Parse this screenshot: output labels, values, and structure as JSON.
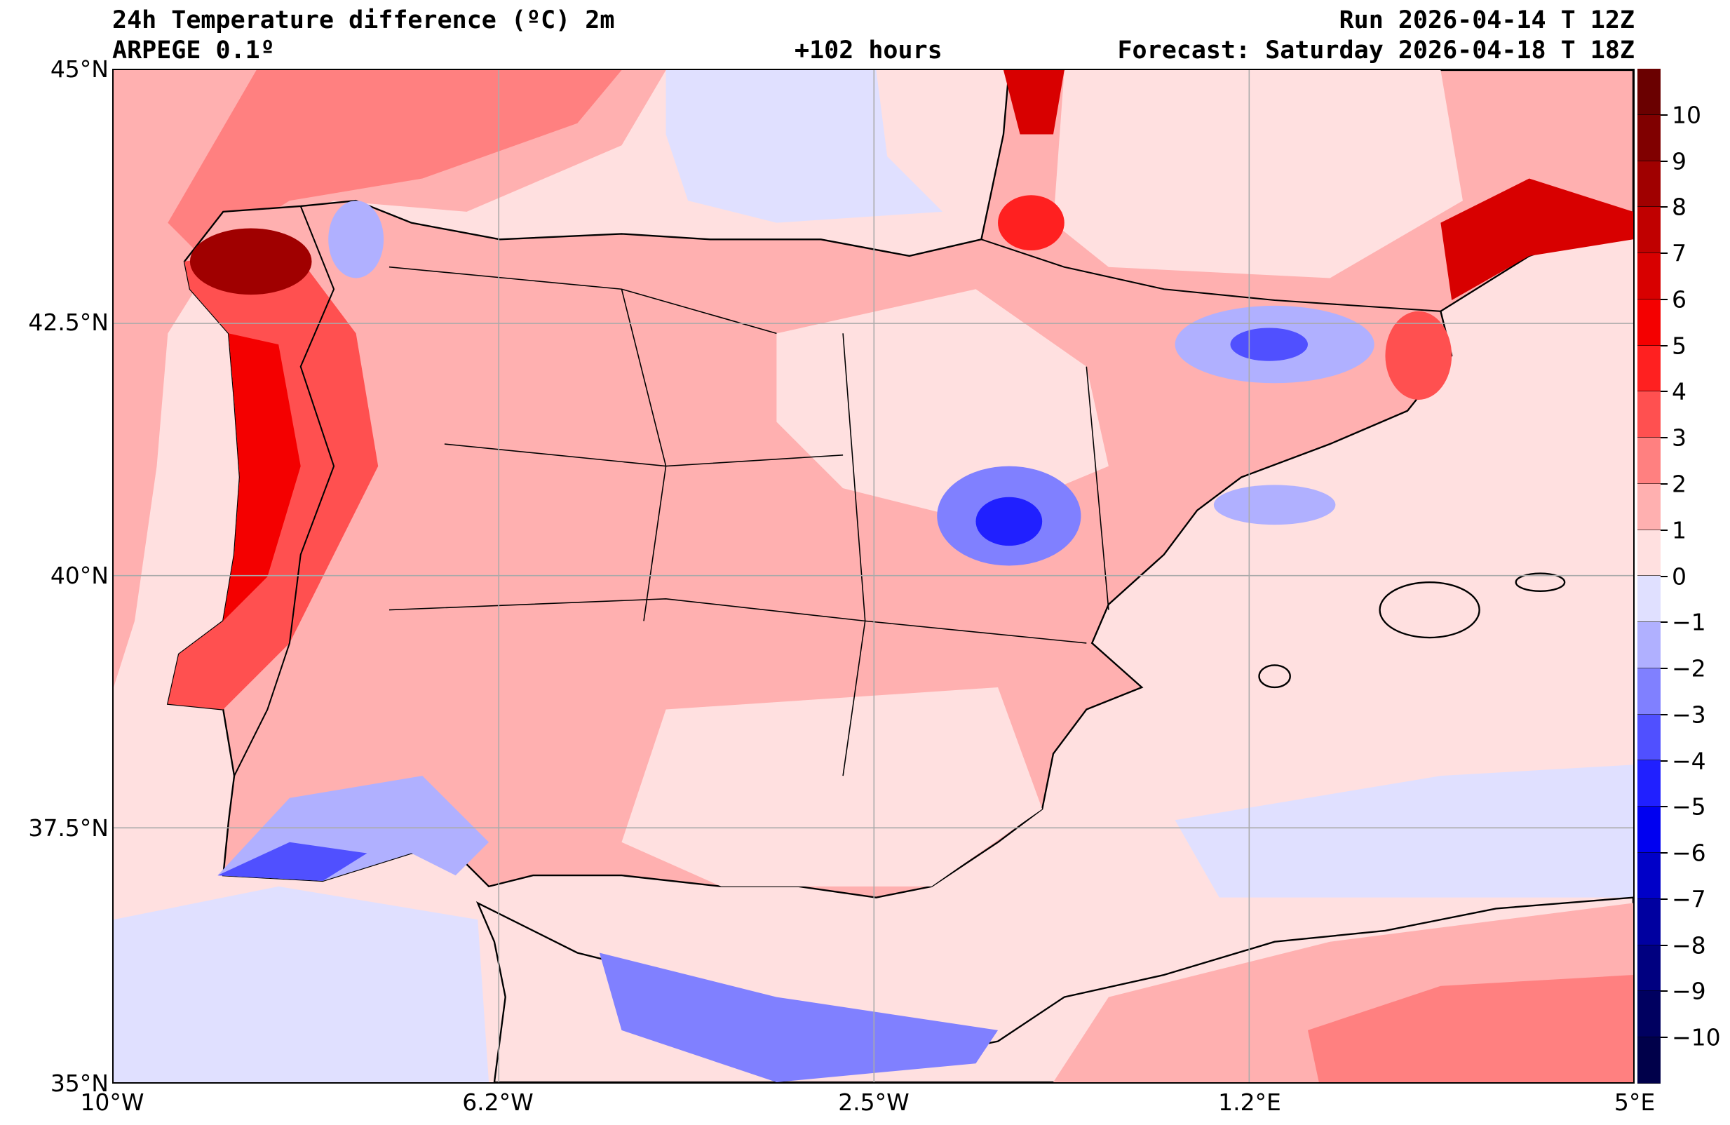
{
  "header": {
    "title": "24h Temperature difference (ºC) 2m",
    "model": "ARPEGE 0.1º",
    "lead": "+102 hours",
    "run": "Run 2026-04-14 T 12Z",
    "forecast": "Forecast: Saturday 2026-04-18 T 18Z"
  },
  "axes": {
    "lat_labels": [
      "45°N",
      "42.5°N",
      "40°N",
      "37.5°N",
      "35°N"
    ],
    "lon_labels": [
      "10°W",
      "6.2°W",
      "2.5°W",
      "1.2°E",
      "5°E"
    ]
  },
  "colorbar": {
    "labels": [
      "10",
      "9",
      "8",
      "7",
      "6",
      "5",
      "4",
      "3",
      "2",
      "1",
      "0",
      "−1",
      "−2",
      "−3",
      "−4",
      "−5",
      "−6",
      "−7",
      "−8",
      "−9",
      "−10"
    ],
    "colors": [
      "#6a0000",
      "#800000",
      "#a00000",
      "#c00000",
      "#d80000",
      "#f40000",
      "#ff2020",
      "#ff5050",
      "#ff8080",
      "#ffb0b0",
      "#ffe0e0",
      "#e0e0ff",
      "#b0b0ff",
      "#8080ff",
      "#5050ff",
      "#2020ff",
      "#0000f0",
      "#0000c8",
      "#0000a0",
      "#000080",
      "#000060",
      "#00004a"
    ]
  }
}
